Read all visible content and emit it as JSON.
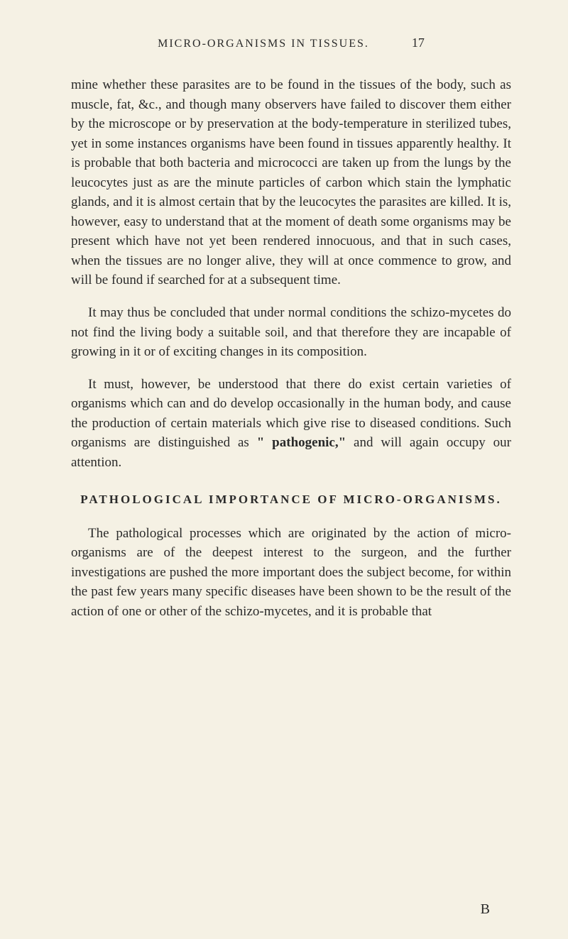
{
  "header": {
    "title": "MICRO-ORGANISMS IN TISSUES.",
    "page_number": "17"
  },
  "paragraphs": {
    "p1": "mine whether these parasites are to be found in the tissues of the body, such as muscle, fat, &c., and though many observers have failed to discover them either by the microscope or by preservation at the body-temperature in sterilized tubes, yet in some instances organisms have been found in tissues apparently healthy. It is probable that both bacteria and micrococci are taken up from the lungs by the leucocytes just as are the minute particles of carbon which stain the lymphatic glands, and it is almost certain that by the leucocytes the parasites are killed. It is, however, easy to understand that at the moment of death some organisms may be present which have not yet been rendered innocuous, and that in such cases, when the tissues are no longer alive, they will at once commence to grow, and will be found if searched for at a subsequent time.",
    "p2": "It may thus be concluded that under normal conditions the schizo-mycetes do not find the living body a suitable soil, and that therefore they are incapable of growing in it or of exciting changes in its composition.",
    "p3_part1": "It must, however, be understood that there do exist certain varieties of organisms which can and do develop occasionally in the human body, and cause the production of certain materials which give rise to diseased conditions. Such organisms are distinguished as ",
    "p3_bold": "\" pathogenic,\"",
    "p3_part2": " and will again occupy our attention."
  },
  "section_heading": "PATHOLOGICAL IMPORTANCE OF MICRO-ORGANISMS.",
  "paragraphs2": {
    "p4": "The pathological processes which are originated by the action of micro-organisms are of the deepest interest to the surgeon, and the further investigations are pushed the more important does the subject become, for within the past few years many specific diseases have been shown to be the result of the action of one or other of the schizo-mycetes, and it is probable that"
  },
  "footer_mark": "B",
  "styling": {
    "background_color": "#f5f1e4",
    "text_color": "#2a2a2a",
    "body_fontsize": 19,
    "header_fontsize": 16,
    "heading_fontsize": 17,
    "line_height": 1.45
  }
}
